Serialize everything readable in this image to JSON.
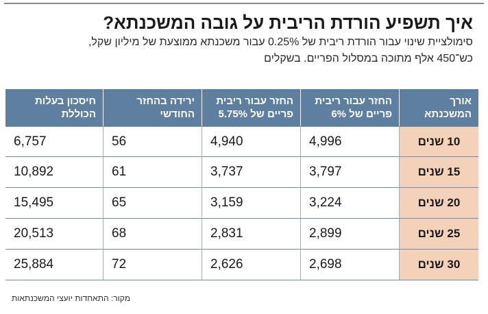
{
  "header": {
    "title": "איך תשפיע הורדת הריבית על גובה המשכנתא?",
    "subtitle_line1": "סימולציית שינוי עבור הורדת ריבית של 0.25% עבור משכנתא ממוצעת של מיליון שקל,",
    "subtitle_line2": "כש־450 אלף מתוכה במסלול הפריים. בשקלים"
  },
  "chart_data": {
    "type": "table",
    "columns": [
      "אורך המשכנתא",
      "החזר עבור ריבית פריים של 6%",
      "החזר עבור ריבית פריים של 5.75%",
      "ירידה בהחזר החודשי",
      "חיסכון בעלות הכוללת"
    ],
    "rows": [
      {
        "term": "10 שנים",
        "payment_6": "4,996",
        "payment_575": "4,940",
        "monthly_drop": "56",
        "total_saving": "6,757"
      },
      {
        "term": "15 שנים",
        "payment_6": "3,797",
        "payment_575": "3,737",
        "monthly_drop": "61",
        "total_saving": "10,892"
      },
      {
        "term": "20 שנים",
        "payment_6": "3,224",
        "payment_575": "3,159",
        "monthly_drop": "65",
        "total_saving": "15,495"
      },
      {
        "term": "25 שנים",
        "payment_6": "2,899",
        "payment_575": "2,831",
        "monthly_drop": "68",
        "total_saving": "20,513"
      },
      {
        "term": "30 שנים",
        "payment_6": "2,698",
        "payment_575": "2,626",
        "monthly_drop": "72",
        "total_saving": "25,884"
      }
    ]
  },
  "footer": {
    "source": "מקור: התאחדות יועצי המשכנתאות"
  },
  "colors": {
    "header_bg": "#5e7f9f",
    "rowhead_bg": "#f3d2b9",
    "rule": "#6f8aa6"
  }
}
